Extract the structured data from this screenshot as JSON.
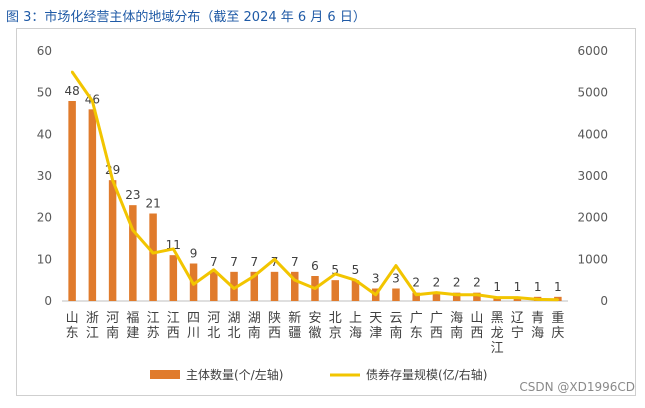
{
  "title": "图 3：市场化经营主体的地域分布（截至 2024 年 6 月 6 日）",
  "watermark": "CSDN @XD1996CD",
  "chart_data": {
    "type": "bar+line",
    "categories": [
      "山东",
      "浙江",
      "河南",
      "福建",
      "江苏",
      "江西",
      "四川",
      "河北",
      "湖北",
      "湖南",
      "陕西",
      "新疆",
      "安徽",
      "北京",
      "上海",
      "天津",
      "云南",
      "广东",
      "广西",
      "海南",
      "山西",
      "黑龙江",
      "辽宁",
      "青海",
      "重庆"
    ],
    "series": [
      {
        "name": "主体数量(个/左轴)",
        "type": "bar",
        "axis": "left",
        "color": "#e07b2c",
        "values": [
          48,
          46,
          29,
          23,
          21,
          11,
          9,
          7,
          7,
          7,
          7,
          7,
          6,
          5,
          5,
          3,
          3,
          2,
          2,
          2,
          2,
          1,
          1,
          1,
          1
        ]
      },
      {
        "name": "债券存量规模(亿/右轴)",
        "type": "line",
        "axis": "right",
        "color": "#f2c500",
        "values": [
          5500,
          4800,
          2900,
          1700,
          1150,
          1250,
          400,
          750,
          300,
          600,
          1000,
          500,
          300,
          650,
          500,
          150,
          850,
          150,
          200,
          150,
          150,
          80,
          80,
          40,
          30
        ]
      }
    ],
    "y_left": {
      "ylim": [
        0,
        60
      ],
      "ticks": [
        0,
        10,
        20,
        30,
        40,
        50,
        60
      ]
    },
    "y_right": {
      "ylim": [
        0,
        6000
      ],
      "ticks": [
        0,
        1000,
        2000,
        3000,
        4000,
        5000,
        6000
      ]
    },
    "legend": "bottom-center",
    "grid": false
  }
}
